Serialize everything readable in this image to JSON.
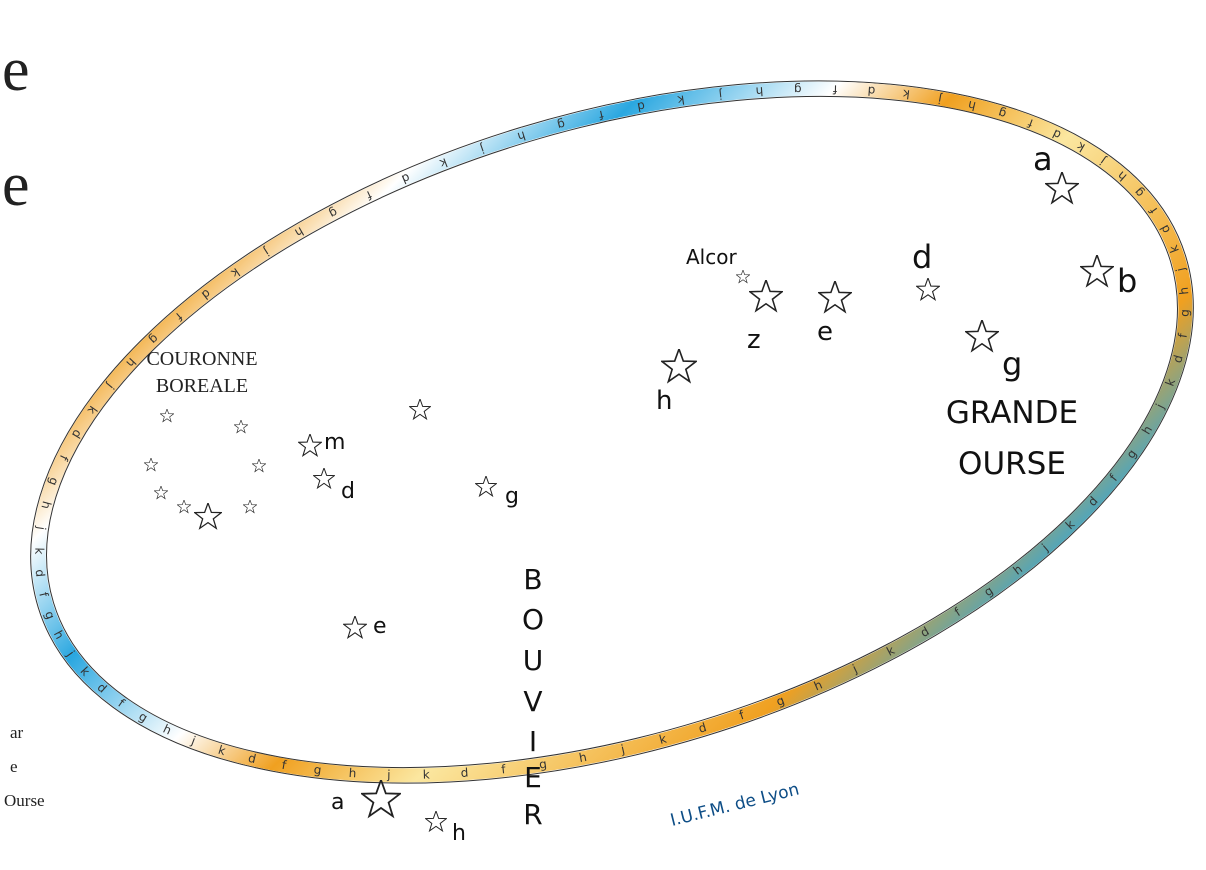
{
  "left_fragments": {
    "top1": "e",
    "top2": "e",
    "bottom": [
      "ar",
      "e",
      "Ourse"
    ]
  },
  "ring": {
    "letters": [
      "h",
      "g",
      "f",
      "d",
      "k",
      "j",
      "h",
      "g",
      "f",
      "d",
      "k",
      "j",
      "h",
      "g",
      "f",
      "d",
      "k",
      "j",
      "h",
      "g",
      "f",
      "d",
      "k",
      "j",
      "h",
      "g",
      "f",
      "d",
      "k",
      "j",
      "h",
      "g",
      "f",
      "d",
      "k",
      "j",
      "h",
      "g",
      "f",
      "d",
      "k",
      "j",
      "h",
      "g",
      "f",
      "d",
      "k",
      "j",
      "h",
      "g",
      "f",
      "d",
      "k",
      "j",
      "h",
      "g",
      "f",
      "d",
      "k",
      "j",
      "h",
      "g",
      "f",
      "d",
      "k",
      "j",
      "h",
      "g",
      "f",
      "d",
      "k",
      "j",
      "h",
      "g",
      "f",
      "d",
      "k",
      "j",
      "h",
      "g",
      "f",
      "d",
      "k",
      "j",
      "h",
      "g",
      "f",
      "d",
      "k",
      "j"
    ],
    "credit": "I.U.F.M. de Lyon",
    "colors": {
      "blue": "#2aa7e0",
      "orange": "#f0a020",
      "yellow": "#fbe7a0",
      "white": "#ffffff"
    }
  },
  "constellations": {
    "grande_ourse": {
      "name_line1": "GRANDE",
      "name_line2": "OURSE"
    },
    "bouvier": {
      "name_letters": [
        "B",
        "O",
        "U",
        "V",
        "I",
        "E",
        "R"
      ]
    },
    "couronne_boreale": {
      "name_line1": "COURONNE",
      "name_line2": "BOREALE"
    }
  },
  "star_labels": [
    {
      "id": "uma-a",
      "text": "a"
    },
    {
      "id": "uma-b",
      "text": "b"
    },
    {
      "id": "uma-d",
      "text": "d"
    },
    {
      "id": "uma-g",
      "text": "g"
    },
    {
      "id": "uma-e",
      "text": "e"
    },
    {
      "id": "uma-z",
      "text": "z"
    },
    {
      "id": "uma-h",
      "text": "h"
    },
    {
      "id": "alcor",
      "text": "Alcor"
    },
    {
      "id": "boo-m",
      "text": "m"
    },
    {
      "id": "boo-d",
      "text": "d"
    },
    {
      "id": "boo-g",
      "text": "g"
    },
    {
      "id": "boo-e",
      "text": "e"
    },
    {
      "id": "boo-a",
      "text": "a"
    },
    {
      "id": "boo-h",
      "text": "h"
    }
  ]
}
